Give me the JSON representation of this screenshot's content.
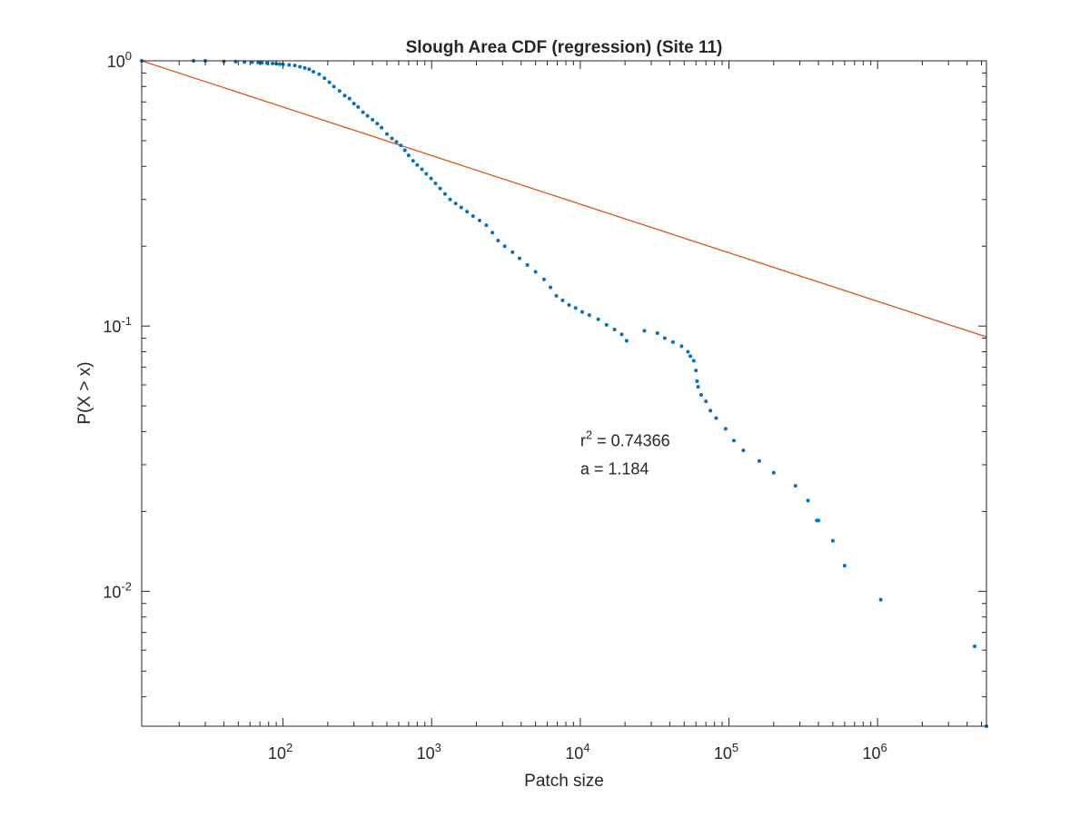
{
  "chart_data": {
    "type": "scatter",
    "title": "Slough Area CDF (regression) (Site 11)",
    "xlabel": "Patch size",
    "ylabel": "P(X > x)",
    "xscale": "log",
    "yscale": "log",
    "xlim": [
      11.2,
      5400000
    ],
    "ylim": [
      0.0031,
      1.0
    ],
    "x_ticks": [
      {
        "base": "10",
        "exp": "2",
        "value": 100
      },
      {
        "base": "10",
        "exp": "3",
        "value": 1000
      },
      {
        "base": "10",
        "exp": "4",
        "value": 10000
      },
      {
        "base": "10",
        "exp": "5",
        "value": 100000
      },
      {
        "base": "10",
        "exp": "6",
        "value": 1000000
      }
    ],
    "y_ticks": [
      {
        "base": "10",
        "exp": "0",
        "value": 1
      },
      {
        "base": "10",
        "exp": "-1",
        "value": 0.1
      },
      {
        "base": "10",
        "exp": "-2",
        "value": 0.01
      }
    ],
    "grid": false,
    "box": true,
    "colors": {
      "data": "#0072BD",
      "fit": "#D95319",
      "axes": "#262626"
    },
    "series": [
      {
        "kind": "points",
        "x": [
          11.2,
          25,
          30,
          40,
          48,
          55,
          62,
          68,
          72,
          78,
          85,
          90,
          95,
          100,
          110,
          120,
          130,
          140,
          150,
          160,
          175,
          190,
          205,
          220,
          240,
          260,
          280,
          300,
          320,
          345,
          370,
          400,
          430,
          460,
          500,
          540,
          580,
          620,
          660,
          700,
          750,
          800,
          860,
          920,
          990,
          1060,
          1140,
          1230,
          1330,
          1450,
          1580,
          1730,
          1900,
          2100,
          2330,
          2560,
          2800,
          3100,
          3500,
          3900,
          4400,
          5000,
          5700,
          6300,
          6900,
          7600,
          8400,
          9300,
          10300,
          11500,
          13200,
          15000,
          17000,
          19000,
          20500,
          27000,
          33000,
          37000,
          42000,
          48000,
          53000,
          55000,
          58000,
          60000,
          61000,
          62000,
          65000,
          70000,
          75000,
          82000,
          95000,
          108000,
          125000,
          160000,
          200000,
          280000,
          340000,
          390000,
          400000,
          500000,
          600000,
          1050000,
          4500000,
          5400000
        ],
        "y": [
          1.0,
          1.0,
          1.0,
          0.995,
          0.993,
          0.99,
          0.988,
          0.985,
          0.982,
          0.98,
          0.978,
          0.975,
          0.972,
          0.97,
          0.965,
          0.96,
          0.95,
          0.94,
          0.93,
          0.91,
          0.89,
          0.86,
          0.83,
          0.8,
          0.77,
          0.74,
          0.72,
          0.69,
          0.67,
          0.64,
          0.62,
          0.6,
          0.58,
          0.56,
          0.53,
          0.51,
          0.495,
          0.48,
          0.46,
          0.44,
          0.42,
          0.405,
          0.39,
          0.375,
          0.36,
          0.345,
          0.33,
          0.315,
          0.3,
          0.29,
          0.28,
          0.27,
          0.26,
          0.25,
          0.24,
          0.225,
          0.21,
          0.2,
          0.19,
          0.18,
          0.17,
          0.16,
          0.15,
          0.14,
          0.13,
          0.125,
          0.12,
          0.117,
          0.113,
          0.11,
          0.106,
          0.101,
          0.097,
          0.093,
          0.088,
          0.096,
          0.094,
          0.09,
          0.087,
          0.084,
          0.08,
          0.077,
          0.074,
          0.068,
          0.062,
          0.059,
          0.055,
          0.052,
          0.048,
          0.045,
          0.041,
          0.037,
          0.034,
          0.031,
          0.028,
          0.025,
          0.022,
          0.0185,
          0.0185,
          0.0155,
          0.0125,
          0.0093,
          0.0062,
          0.0031
        ]
      },
      {
        "kind": "line",
        "x": [
          11.2,
          5400000
        ],
        "y": [
          1.0,
          0.091
        ]
      }
    ],
    "annotations": [
      {
        "base": "r",
        "sup": "2",
        "text": " = 0.74366",
        "x": 10000,
        "y": 0.037
      },
      {
        "base": "",
        "sup": "",
        "text": "a = 1.184",
        "x": 10000,
        "y": 0.029
      }
    ]
  }
}
